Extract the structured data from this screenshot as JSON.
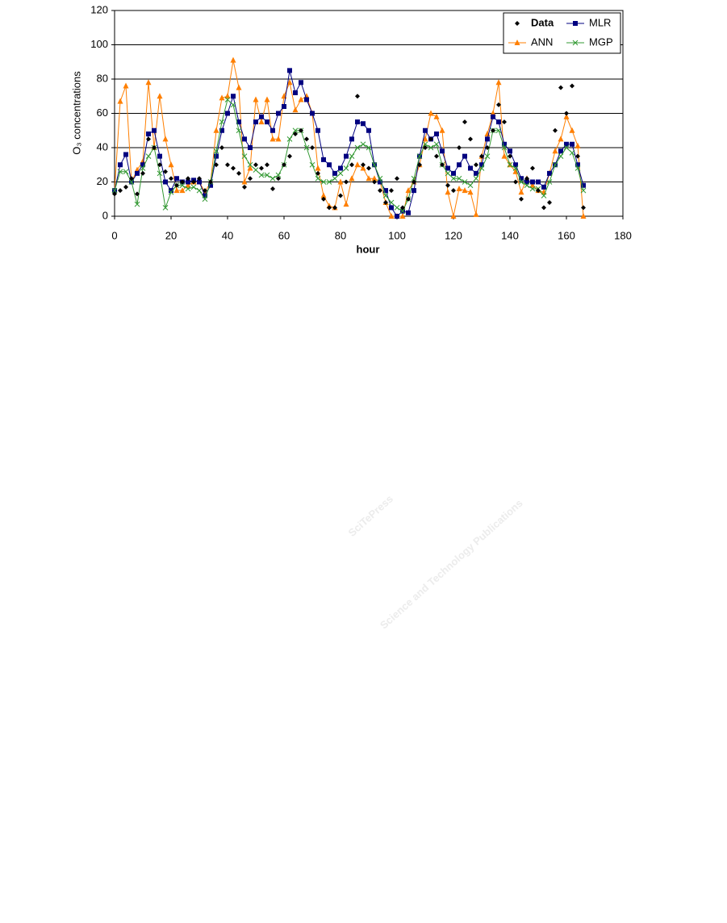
{
  "watermark": {
    "brand": "SciTePress",
    "tagline": "Science and Technology Publications"
  },
  "chart_data": {
    "type": "line",
    "xlabel": "hour",
    "ylabel": "O₃ concentrations",
    "xlim": [
      0,
      180
    ],
    "ylim": [
      0,
      120
    ],
    "xticks": [
      0,
      20,
      40,
      60,
      80,
      100,
      120,
      140,
      160,
      180
    ],
    "yticks": [
      0,
      20,
      40,
      60,
      80,
      100,
      120
    ],
    "grid": true,
    "legend": "upper right",
    "x": [
      0,
      2,
      4,
      6,
      8,
      10,
      12,
      14,
      16,
      18,
      20,
      22,
      24,
      26,
      28,
      30,
      32,
      34,
      36,
      38,
      40,
      42,
      44,
      46,
      48,
      50,
      52,
      54,
      56,
      58,
      60,
      62,
      64,
      66,
      68,
      70,
      72,
      74,
      76,
      78,
      80,
      82,
      84,
      86,
      88,
      90,
      92,
      94,
      96,
      98,
      100,
      102,
      104,
      106,
      108,
      110,
      112,
      114,
      116,
      118,
      120,
      122,
      124,
      126,
      128,
      130,
      132,
      134,
      136,
      138,
      140,
      142,
      144,
      146,
      148,
      150,
      152,
      154,
      156,
      158,
      160,
      162,
      164,
      166
    ],
    "series": [
      {
        "name": "Data",
        "color": "#000000",
        "marker": "diamond",
        "line": false,
        "values": [
          13,
          15,
          17,
          22,
          13,
          25,
          45,
          40,
          30,
          26,
          22,
          18,
          20,
          22,
          20,
          22,
          15,
          20,
          30,
          40,
          30,
          28,
          25,
          17,
          22,
          30,
          28,
          30,
          16,
          22,
          30,
          35,
          48,
          50,
          45,
          40,
          25,
          10,
          5,
          5,
          12,
          20,
          30,
          70,
          30,
          28,
          20,
          15,
          8,
          15,
          22,
          5,
          10,
          20,
          30,
          40,
          45,
          35,
          30,
          18,
          15,
          40,
          55,
          45,
          30,
          35,
          40,
          50,
          65,
          55,
          35,
          20,
          10,
          22,
          28,
          15,
          5,
          8,
          50,
          75,
          60,
          76,
          35,
          5
        ]
      },
      {
        "name": "MLR",
        "color": "#000080",
        "marker": "square",
        "line": true,
        "values": [
          15,
          30,
          36,
          20,
          25,
          30,
          48,
          50,
          35,
          20,
          15,
          22,
          20,
          20,
          21,
          20,
          12,
          18,
          35,
          50,
          60,
          70,
          55,
          45,
          40,
          55,
          58,
          55,
          50,
          60,
          64,
          85,
          72,
          78,
          68,
          60,
          50,
          33,
          30,
          25,
          28,
          35,
          45,
          55,
          54,
          50,
          30,
          20,
          15,
          5,
          0,
          3,
          2,
          15,
          35,
          50,
          45,
          48,
          38,
          28,
          25,
          30,
          35,
          28,
          25,
          30,
          45,
          58,
          55,
          42,
          38,
          30,
          22,
          20,
          20,
          20,
          17,
          25,
          30,
          38,
          42,
          42,
          30,
          18
        ]
      },
      {
        "name": "ANN",
        "color": "#ff7f00",
        "marker": "triangle",
        "line": true,
        "values": [
          15,
          67,
          76,
          20,
          27,
          32,
          78,
          40,
          70,
          45,
          30,
          15,
          15,
          18,
          20,
          20,
          14,
          20,
          50,
          69,
          70,
          91,
          75,
          20,
          28,
          68,
          55,
          68,
          45,
          45,
          70,
          78,
          62,
          68,
          70,
          60,
          28,
          12,
          6,
          5,
          20,
          7,
          22,
          30,
          28,
          22,
          22,
          20,
          8,
          0,
          0,
          0,
          15,
          20,
          30,
          45,
          60,
          58,
          50,
          14,
          0,
          16,
          15,
          14,
          1,
          35,
          48,
          60,
          78,
          35,
          30,
          26,
          14,
          22,
          18,
          15,
          14,
          25,
          38,
          45,
          58,
          50,
          41,
          0
        ]
      },
      {
        "name": "MGP",
        "color": "#339933",
        "marker": "x",
        "line": true,
        "values": [
          15,
          26,
          26,
          20,
          7,
          28,
          35,
          40,
          25,
          5,
          14,
          18,
          18,
          16,
          17,
          15,
          10,
          20,
          38,
          55,
          68,
          65,
          50,
          35,
          30,
          27,
          24,
          24,
          22,
          24,
          30,
          45,
          50,
          50,
          40,
          30,
          22,
          20,
          20,
          22,
          25,
          28,
          35,
          40,
          42,
          40,
          30,
          22,
          12,
          8,
          5,
          3,
          10,
          22,
          35,
          42,
          40,
          42,
          30,
          25,
          22,
          22,
          20,
          18,
          22,
          28,
          35,
          50,
          50,
          40,
          30,
          28,
          20,
          18,
          16,
          16,
          12,
          20,
          30,
          35,
          40,
          37,
          28,
          15
        ]
      }
    ]
  }
}
